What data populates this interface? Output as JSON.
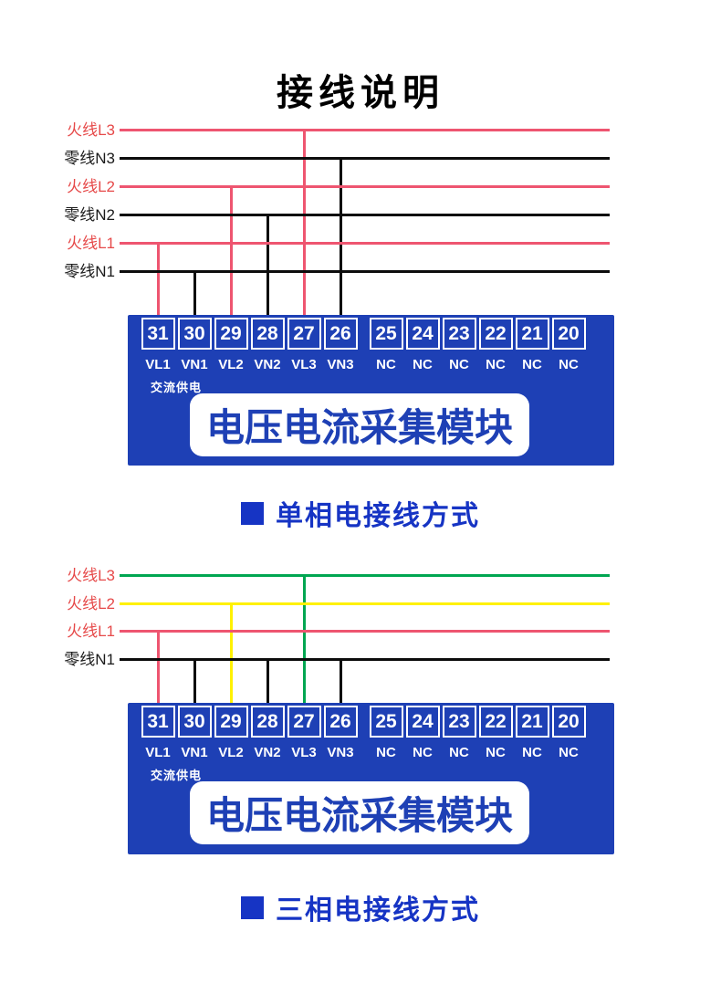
{
  "page": {
    "title": "接线说明"
  },
  "colors": {
    "module_blue": "#1e40b5",
    "caption_blue": "#1634c4",
    "wire_red": "#ee5570",
    "wire_black": "#0c0c0c",
    "wire_green": "#00a651",
    "wire_yellow": "#fff100",
    "label_red": "#e64949",
    "label_black": "#1a1a1a"
  },
  "module": {
    "power_label": "交流供电",
    "name": "电压电流采集模块",
    "terminals": [
      {
        "num": "31",
        "label": "VL1"
      },
      {
        "num": "30",
        "label": "VN1"
      },
      {
        "num": "29",
        "label": "VL2"
      },
      {
        "num": "28",
        "label": "VN2"
      },
      {
        "num": "27",
        "label": "VL3"
      },
      {
        "num": "26",
        "label": "VN3"
      },
      {
        "num": "25",
        "label": "NC"
      },
      {
        "num": "24",
        "label": "NC"
      },
      {
        "num": "23",
        "label": "NC"
      },
      {
        "num": "22",
        "label": "NC"
      },
      {
        "num": "21",
        "label": "NC"
      },
      {
        "num": "20",
        "label": "NC"
      }
    ]
  },
  "diagrams": [
    {
      "id": "single-phase",
      "caption": "单相电接线方式",
      "wires": [
        {
          "label": "火线L3",
          "label_color": "label_red",
          "line_color": "wire_red",
          "connects_to": [
            "27"
          ]
        },
        {
          "label": "零线N3",
          "label_color": "label_black",
          "line_color": "wire_black",
          "connects_to": [
            "26"
          ]
        },
        {
          "label": "火线L2",
          "label_color": "label_red",
          "line_color": "wire_red",
          "connects_to": [
            "29"
          ]
        },
        {
          "label": "零线N2",
          "label_color": "label_black",
          "line_color": "wire_black",
          "connects_to": [
            "28"
          ]
        },
        {
          "label": "火线L1",
          "label_color": "label_red",
          "line_color": "wire_red",
          "connects_to": [
            "31"
          ]
        },
        {
          "label": "零线N1",
          "label_color": "label_black",
          "line_color": "wire_black",
          "connects_to": [
            "30"
          ]
        }
      ]
    },
    {
      "id": "three-phase",
      "caption": "三相电接线方式",
      "wires": [
        {
          "label": "火线L3",
          "label_color": "label_red",
          "line_color": "wire_green",
          "connects_to": [
            "27"
          ]
        },
        {
          "label": "火线L2",
          "label_color": "label_red",
          "line_color": "wire_yellow",
          "connects_to": [
            "29"
          ]
        },
        {
          "label": "火线L1",
          "label_color": "label_red",
          "line_color": "wire_red",
          "connects_to": [
            "31"
          ]
        },
        {
          "label": "零线N1",
          "label_color": "label_black",
          "line_color": "wire_black",
          "connects_to": [
            "30",
            "28",
            "26"
          ]
        }
      ]
    }
  ]
}
